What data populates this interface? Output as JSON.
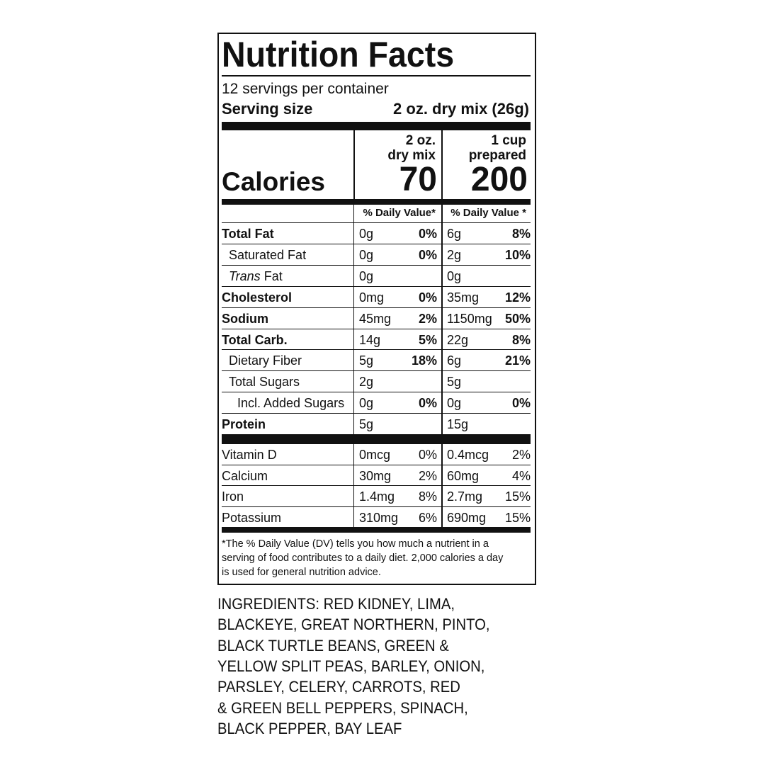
{
  "label": {
    "title": "Nutrition Facts",
    "servings": "12 servings per container",
    "serving_size_label": "Serving size",
    "serving_size_value": "2 oz. dry mix (26g)",
    "calories_label": "Calories",
    "columns": [
      {
        "line_1": "2 oz.",
        "line_2": "dry mix",
        "calories": "70",
        "dv_header": "% Daily Value*"
      },
      {
        "line_1": "1 cup",
        "line_2": "prepared",
        "calories": "200",
        "dv_header": "% Daily Value *"
      }
    ],
    "nutrients": [
      {
        "name": "Total Fat",
        "amount_1": "0g",
        "dv_1": "0%",
        "amount_2": "6g",
        "dv_2": "8%"
      },
      {
        "name": "Saturated Fat",
        "amount_1": "0g",
        "dv_1": "0%",
        "amount_2": "2g",
        "dv_2": "10%"
      },
      {
        "name_italic": "Trans",
        "name": "Fat",
        "amount_1": "0g",
        "dv_1": null,
        "amount_2": "0g",
        "dv_2": null
      },
      {
        "name": "Cholesterol",
        "amount_1": "0mg",
        "dv_1": "0%",
        "amount_2": "35mg",
        "dv_2": "12%"
      },
      {
        "name": "Sodium",
        "amount_1": "45mg",
        "dv_1": "2%",
        "amount_2": "1150mg",
        "dv_2": "50%"
      },
      {
        "name": "Total Carb.",
        "amount_1": "14g",
        "dv_1": "5%",
        "amount_2": "22g",
        "dv_2": "8%"
      },
      {
        "name": "Dietary Fiber",
        "amount_1": "5g",
        "dv_1": "18%",
        "amount_2": "6g",
        "dv_2": "21%"
      },
      {
        "name": "Total Sugars",
        "amount_1": "2g",
        "dv_1": null,
        "amount_2": "5g",
        "dv_2": null
      },
      {
        "name": "Incl. Added Sugars",
        "amount_1": "0g",
        "dv_1": "0%",
        "amount_2": "0g",
        "dv_2": "0%"
      },
      {
        "name": "Protein",
        "amount_1": "5g",
        "dv_1": null,
        "amount_2": "15g",
        "dv_2": null
      }
    ],
    "vitamins": [
      {
        "name": "Vitamin D",
        "amount_1": "0mcg",
        "dv_1": "0%",
        "amount_2": "0.4mcg",
        "dv_2": "2%"
      },
      {
        "name": "Calcium",
        "amount_1": "30mg",
        "dv_1": "2%",
        "amount_2": "60mg",
        "dv_2": "4%"
      },
      {
        "name": "Iron",
        "amount_1": "1.4mg",
        "dv_1": "8%",
        "amount_2": "2.7mg",
        "dv_2": "15%"
      },
      {
        "name": "Potassium",
        "amount_1": "310mg",
        "dv_1": "6%",
        "amount_2": "690mg",
        "dv_2": "15%"
      }
    ],
    "footnote": [
      "*The % Daily Value (DV) tells you how much a nutrient in a",
      "serving of food contributes to a daily diet. 2,000 calories a day",
      "is used for general nutrition advice."
    ]
  },
  "ingredients": [
    "INGREDIENTS: RED KIDNEY, LIMA,",
    "BLACKEYE, GREAT NORTHERN, PINTO,",
    "BLACK TURTLE BEANS, GREEN &",
    "YELLOW SPLIT PEAS, BARLEY, ONION,",
    "PARSLEY, CELERY, CARROTS, RED",
    "& GREEN BELL PEPPERS, SPINACH,",
    "BLACK PEPPER, BAY LEAF"
  ]
}
